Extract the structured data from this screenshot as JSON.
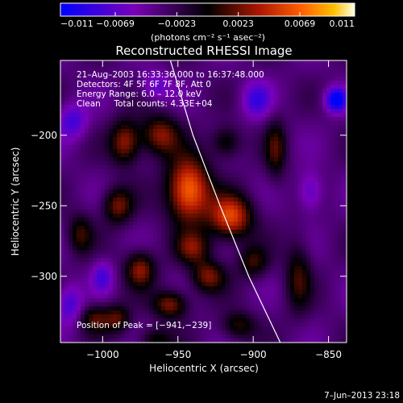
{
  "chart_data": {
    "type": "heatmap",
    "title": "Reconstructed RHESSI Image",
    "xlabel": "Heliocentric X (arcsec)",
    "ylabel": "Heliocentric Y (arcsec)",
    "xlim": [
      -1028,
      -838
    ],
    "ylim": [
      -347,
      -147
    ],
    "x_ticks": [
      -1000,
      -950,
      -900,
      -850
    ],
    "y_ticks": [
      -200,
      -250,
      -300
    ],
    "x_tick_labels": [
      "−1000",
      "−950",
      "−900",
      "−850"
    ],
    "y_tick_labels": [
      "−200",
      "−250",
      "−300"
    ],
    "colorbar": {
      "min": -0.011,
      "max": 0.011,
      "ticks": [
        -0.011,
        -0.0069,
        -0.0023,
        0.0023,
        0.0069,
        0.011
      ],
      "tick_labels": [
        "−0.011",
        "−0.0069",
        "−0.0023",
        "0.0023",
        "0.0069",
        "0.011"
      ],
      "unit_label": "(photons cm⁻² s⁻¹ asec⁻²)"
    },
    "annotations": [
      "21–Aug–2003 16:33:36.000 to 16:37:48.000",
      "Detectors: 4F 5F 6F 7F 8F, Att 0",
      "Energy Range: 6.0 – 12.0 keV",
      "Clean     Total counts: 4.33E+04"
    ],
    "peak_label": "Position of Peak = [−941,−239]",
    "peak_position": [
      -941,
      -239
    ],
    "limb_curve": [
      [
        -955,
        -147
      ],
      [
        -940,
        -200
      ],
      [
        -922,
        -250
      ],
      [
        -903,
        -300
      ],
      [
        -882,
        -347
      ]
    ],
    "sources": [
      {
        "x": -943,
        "y": -239,
        "amp": 0.011,
        "sx": 10,
        "sy": 16
      },
      {
        "x": -915,
        "y": -258,
        "amp": 0.0092,
        "sx": 10,
        "sy": 11
      },
      {
        "x": -962,
        "y": -200,
        "amp": 0.0065,
        "sx": 9,
        "sy": 10
      },
      {
        "x": -985,
        "y": -205,
        "amp": 0.0068,
        "sx": 7,
        "sy": 11
      },
      {
        "x": -990,
        "y": -250,
        "amp": 0.006,
        "sx": 7,
        "sy": 9
      },
      {
        "x": -975,
        "y": -295,
        "amp": 0.0065,
        "sx": 7,
        "sy": 9
      },
      {
        "x": -940,
        "y": -280,
        "amp": 0.0055,
        "sx": 8,
        "sy": 8
      },
      {
        "x": -930,
        "y": -300,
        "amp": 0.006,
        "sx": 8,
        "sy": 8
      },
      {
        "x": -955,
        "y": -320,
        "amp": 0.0065,
        "sx": 8,
        "sy": 7
      },
      {
        "x": -1005,
        "y": -330,
        "amp": 0.005,
        "sx": 7,
        "sy": 7
      },
      {
        "x": -990,
        "y": -330,
        "amp": 0.005,
        "sx": 6,
        "sy": 7
      },
      {
        "x": -900,
        "y": -290,
        "amp": 0.0045,
        "sx": 7,
        "sy": 8
      },
      {
        "x": -885,
        "y": -210,
        "amp": 0.0045,
        "sx": 5,
        "sy": 15
      },
      {
        "x": -870,
        "y": -300,
        "amp": 0.0045,
        "sx": 6,
        "sy": 18
      },
      {
        "x": -910,
        "y": -335,
        "amp": 0.0045,
        "sx": 8,
        "sy": 7
      },
      {
        "x": -918,
        "y": -205,
        "amp": 0.0045,
        "sx": 7,
        "sy": 8
      },
      {
        "x": -1015,
        "y": -270,
        "amp": 0.0045,
        "sx": 6,
        "sy": 10
      },
      {
        "x": -965,
        "y": -345,
        "amp": 0.004,
        "sx": 8,
        "sy": 6
      },
      {
        "x": -1020,
        "y": -190,
        "amp": -0.0045,
        "sx": 7,
        "sy": 9
      },
      {
        "x": -1022,
        "y": -320,
        "amp": -0.0045,
        "sx": 6,
        "sy": 10
      },
      {
        "x": -898,
        "y": -175,
        "amp": -0.0045,
        "sx": 7,
        "sy": 9
      },
      {
        "x": -845,
        "y": -175,
        "amp": -0.0085,
        "sx": 5,
        "sy": 6
      },
      {
        "x": -862,
        "y": -240,
        "amp": -0.004,
        "sx": 6,
        "sy": 10
      },
      {
        "x": -1000,
        "y": -300,
        "amp": -0.004,
        "sx": 5,
        "sy": 8
      },
      {
        "x": -965,
        "y": -165,
        "amp": -0.0035,
        "sx": 7,
        "sy": 7
      }
    ]
  },
  "footer": {
    "timestamp": "7–Jun–2013 23:18"
  }
}
